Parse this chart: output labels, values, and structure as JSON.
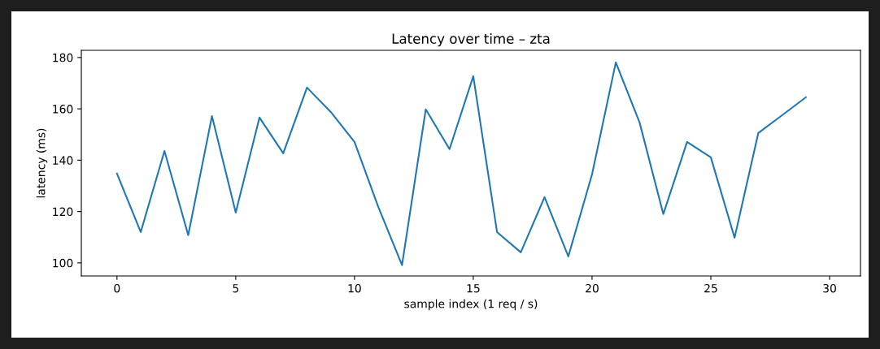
{
  "chart_data": {
    "type": "line",
    "title": "Latency over time – zta",
    "xlabel": "sample index (1 req / s)",
    "ylabel": "latency (ms)",
    "x": [
      0,
      1,
      2,
      3,
      4,
      5,
      6,
      7,
      8,
      9,
      10,
      11,
      12,
      13,
      14,
      15,
      16,
      17,
      18,
      19,
      20,
      21,
      22,
      23,
      24,
      25,
      26,
      27,
      28,
      29
    ],
    "series": [
      {
        "color": "#1f77b4",
        "values": [
          134.8,
          112,
          143.6,
          110.8,
          157.2,
          119.6,
          156.6,
          142.7,
          168.3,
          158.8,
          147.1,
          121.8,
          99.1,
          159.8,
          144.3,
          172.7,
          112,
          104.1,
          125.6,
          102.5,
          134.5,
          178.1,
          154.7,
          119,
          147.1,
          141.1,
          109.8,
          150.6,
          157.5,
          164.5
        ]
      }
    ],
    "xlim": [
      -1.5,
      31.3
    ],
    "ylim": [
      94.9,
      182.8
    ],
    "xticks": [
      0,
      5,
      10,
      15,
      20,
      25,
      30
    ],
    "yticks": [
      100,
      120,
      140,
      160,
      180
    ],
    "grid": false,
    "legend": false,
    "marker": "none",
    "line_style": "solid"
  }
}
